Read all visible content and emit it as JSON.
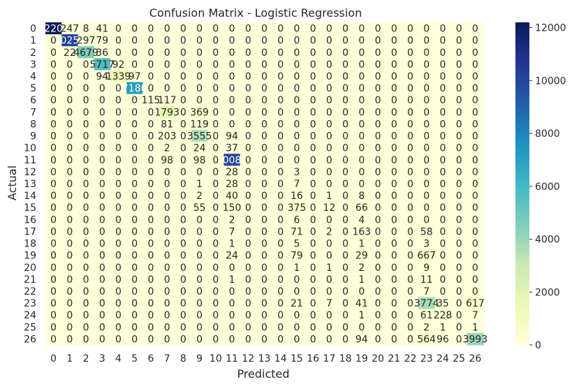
{
  "chart_data": {
    "type": "heatmap",
    "title": "Confusion Matrix - Logistic Regression",
    "xlabel": "Predicted",
    "ylabel": "Actual",
    "x_ticks": [
      "0",
      "1",
      "2",
      "3",
      "4",
      "5",
      "6",
      "7",
      "8",
      "9",
      "10",
      "11",
      "12",
      "13",
      "14",
      "15",
      "16",
      "17",
      "18",
      "19",
      "20",
      "21",
      "22",
      "23",
      "24",
      "25",
      "26"
    ],
    "y_ticks": [
      "0",
      "1",
      "2",
      "3",
      "4",
      "5",
      "6",
      "7",
      "8",
      "9",
      "10",
      "11",
      "12",
      "13",
      "14",
      "15",
      "16",
      "17",
      "18",
      "19",
      "20",
      "21",
      "22",
      "23",
      "24",
      "25",
      "26"
    ],
    "colorbar": {
      "min": 0,
      "max": 12200,
      "ticks": [
        0,
        2000,
        4000,
        6000,
        8000,
        10000,
        12000
      ],
      "tick_labels": [
        "0",
        "2000",
        "4000",
        "6000",
        "8000",
        "10000",
        "12000"
      ],
      "colormap": "YlGnBu",
      "stops": [
        "#ffffd9",
        "#edf8b1",
        "#c7e9b4",
        "#7fcdbb",
        "#41b6c4",
        "#1d91c0",
        "#225ea8",
        "#253494",
        "#081d58"
      ]
    },
    "matrix": [
      [
        12200,
        247,
        8,
        41,
        0,
        0,
        0,
        0,
        0,
        0,
        0,
        0,
        0,
        0,
        0,
        0,
        0,
        0,
        0,
        0,
        0,
        0,
        0,
        0,
        0,
        0,
        0
      ],
      [
        0,
        10251,
        297,
        79,
        0,
        0,
        0,
        0,
        0,
        0,
        0,
        0,
        0,
        0,
        0,
        0,
        0,
        0,
        0,
        0,
        0,
        0,
        0,
        0,
        0,
        0,
        0
      ],
      [
        0,
        22,
        4679,
        36,
        0,
        0,
        0,
        0,
        0,
        0,
        0,
        0,
        0,
        0,
        0,
        0,
        0,
        0,
        0,
        0,
        0,
        0,
        0,
        0,
        0,
        0,
        0
      ],
      [
        0,
        0,
        0,
        5717,
        92,
        0,
        0,
        0,
        0,
        0,
        0,
        0,
        0,
        0,
        0,
        0,
        0,
        0,
        0,
        0,
        0,
        0,
        0,
        0,
        0,
        0,
        0
      ],
      [
        0,
        0,
        0,
        94,
        1339,
        97,
        0,
        0,
        0,
        0,
        0,
        0,
        0,
        0,
        0,
        0,
        0,
        0,
        0,
        0,
        0,
        0,
        0,
        0,
        0,
        0,
        0
      ],
      [
        0,
        0,
        0,
        0,
        0,
        7180,
        0,
        0,
        0,
        0,
        0,
        0,
        0,
        0,
        0,
        0,
        0,
        0,
        0,
        0,
        0,
        0,
        0,
        0,
        0,
        0,
        0
      ],
      [
        0,
        0,
        0,
        0,
        0,
        0,
        115,
        117,
        0,
        0,
        0,
        0,
        0,
        0,
        0,
        0,
        0,
        0,
        0,
        0,
        0,
        0,
        0,
        0,
        0,
        0,
        0
      ],
      [
        0,
        0,
        0,
        0,
        0,
        0,
        0,
        1793,
        0,
        369,
        0,
        0,
        0,
        0,
        0,
        0,
        0,
        0,
        0,
        0,
        0,
        0,
        0,
        0,
        0,
        0,
        0
      ],
      [
        0,
        0,
        0,
        0,
        0,
        0,
        0,
        81,
        0,
        119,
        0,
        0,
        0,
        0,
        0,
        0,
        0,
        0,
        0,
        0,
        0,
        0,
        0,
        0,
        0,
        0,
        0
      ],
      [
        0,
        0,
        0,
        0,
        0,
        0,
        0,
        203,
        0,
        3555,
        0,
        94,
        0,
        0,
        0,
        0,
        0,
        0,
        0,
        0,
        0,
        0,
        0,
        0,
        0,
        0,
        0
      ],
      [
        0,
        0,
        0,
        0,
        0,
        0,
        0,
        2,
        0,
        24,
        0,
        37,
        0,
        0,
        0,
        0,
        0,
        0,
        0,
        0,
        0,
        0,
        0,
        0,
        0,
        0,
        0
      ],
      [
        0,
        0,
        0,
        0,
        0,
        0,
        0,
        98,
        0,
        98,
        0,
        10089,
        0,
        0,
        0,
        0,
        0,
        0,
        0,
        0,
        0,
        0,
        0,
        0,
        0,
        0,
        0
      ],
      [
        0,
        0,
        0,
        0,
        0,
        0,
        0,
        0,
        0,
        0,
        0,
        28,
        0,
        0,
        0,
        3,
        0,
        0,
        0,
        0,
        0,
        0,
        0,
        0,
        0,
        0,
        0
      ],
      [
        0,
        0,
        0,
        0,
        0,
        0,
        0,
        0,
        0,
        1,
        0,
        28,
        0,
        0,
        0,
        7,
        0,
        0,
        0,
        0,
        0,
        0,
        0,
        0,
        0,
        0,
        0
      ],
      [
        0,
        0,
        0,
        0,
        0,
        0,
        0,
        0,
        0,
        2,
        0,
        40,
        0,
        0,
        0,
        16,
        0,
        1,
        0,
        8,
        0,
        0,
        0,
        0,
        0,
        0,
        0
      ],
      [
        0,
        0,
        0,
        0,
        0,
        0,
        0,
        0,
        0,
        55,
        0,
        150,
        0,
        0,
        0,
        375,
        0,
        12,
        0,
        66,
        0,
        0,
        0,
        0,
        0,
        0,
        0
      ],
      [
        0,
        0,
        0,
        0,
        0,
        0,
        0,
        0,
        0,
        0,
        0,
        2,
        0,
        0,
        0,
        6,
        0,
        0,
        0,
        4,
        0,
        0,
        0,
        0,
        0,
        0,
        0
      ],
      [
        0,
        0,
        0,
        0,
        0,
        0,
        0,
        0,
        0,
        0,
        0,
        7,
        0,
        0,
        0,
        71,
        0,
        2,
        0,
        163,
        0,
        0,
        0,
        58,
        0,
        0,
        0
      ],
      [
        0,
        0,
        0,
        0,
        0,
        0,
        0,
        0,
        0,
        0,
        0,
        1,
        0,
        0,
        0,
        5,
        0,
        0,
        0,
        1,
        0,
        0,
        0,
        3,
        0,
        0,
        0
      ],
      [
        0,
        0,
        0,
        0,
        0,
        0,
        0,
        0,
        0,
        0,
        0,
        24,
        0,
        0,
        0,
        79,
        0,
        0,
        0,
        29,
        0,
        0,
        0,
        667,
        0,
        0,
        0
      ],
      [
        0,
        0,
        0,
        0,
        0,
        0,
        0,
        0,
        0,
        0,
        0,
        0,
        0,
        0,
        0,
        1,
        0,
        1,
        0,
        2,
        0,
        0,
        0,
        9,
        0,
        0,
        0
      ],
      [
        0,
        0,
        0,
        0,
        0,
        0,
        0,
        0,
        0,
        0,
        0,
        1,
        0,
        0,
        0,
        0,
        0,
        0,
        0,
        1,
        0,
        0,
        0,
        11,
        0,
        0,
        0
      ],
      [
        0,
        0,
        0,
        0,
        0,
        0,
        0,
        0,
        0,
        0,
        0,
        0,
        0,
        0,
        0,
        0,
        0,
        0,
        0,
        0,
        0,
        0,
        0,
        7,
        0,
        0,
        0
      ],
      [
        0,
        0,
        0,
        0,
        0,
        0,
        0,
        0,
        0,
        0,
        0,
        0,
        0,
        0,
        0,
        21,
        0,
        7,
        0,
        41,
        0,
        0,
        0,
        3774,
        35,
        0,
        617
      ],
      [
        0,
        0,
        0,
        0,
        0,
        0,
        0,
        0,
        0,
        0,
        0,
        0,
        0,
        0,
        0,
        0,
        0,
        0,
        0,
        1,
        0,
        0,
        0,
        61,
        228,
        0,
        7
      ],
      [
        0,
        0,
        0,
        0,
        0,
        0,
        0,
        0,
        0,
        0,
        0,
        0,
        0,
        0,
        0,
        0,
        0,
        0,
        0,
        0,
        0,
        0,
        0,
        2,
        1,
        0,
        1
      ],
      [
        0,
        0,
        0,
        0,
        0,
        0,
        0,
        0,
        0,
        0,
        0,
        0,
        0,
        0,
        0,
        0,
        0,
        0,
        0,
        94,
        0,
        0,
        0,
        564,
        96,
        0,
        3993
      ]
    ]
  }
}
